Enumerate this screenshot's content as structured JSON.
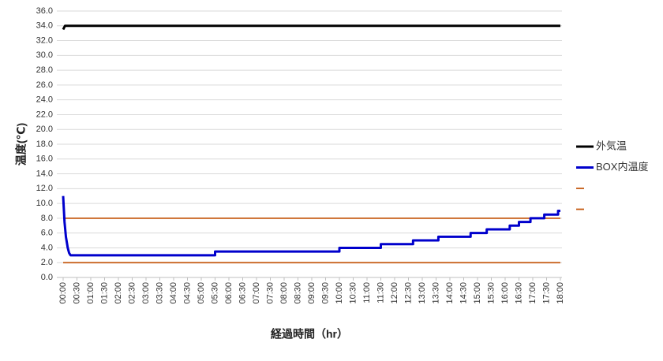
{
  "chart_data": {
    "type": "line",
    "x_label": "経過時間（hr）",
    "y_label": "温度(℃)",
    "ylim": [
      0,
      36
    ],
    "yticks": [
      {
        "value": 0,
        "label": "0.0"
      },
      {
        "value": 2,
        "label": "2.0"
      },
      {
        "value": 4,
        "label": "4.0"
      },
      {
        "value": 6,
        "label": "6.0"
      },
      {
        "value": 8,
        "label": "8.0"
      },
      {
        "value": 10,
        "label": "10.0"
      },
      {
        "value": 12,
        "label": "12.0"
      },
      {
        "value": 14,
        "label": "14.0"
      },
      {
        "value": 16,
        "label": "16.0"
      },
      {
        "value": 18,
        "label": "18.0"
      },
      {
        "value": 20,
        "label": "20.0"
      },
      {
        "value": 22,
        "label": "22.0"
      },
      {
        "value": 24,
        "label": "24.0"
      },
      {
        "value": 26,
        "label": "26.0"
      },
      {
        "value": 28,
        "label": "28.0"
      },
      {
        "value": 30,
        "label": "30.0"
      },
      {
        "value": 32,
        "label": "32.0"
      },
      {
        "value": 34,
        "label": "34.0"
      },
      {
        "value": 36,
        "label": "36.0"
      }
    ],
    "xlim": [
      0,
      1080
    ],
    "xticks": [
      {
        "value": 0,
        "label": "00:00"
      },
      {
        "value": 30,
        "label": "00:30"
      },
      {
        "value": 60,
        "label": "01:00"
      },
      {
        "value": 90,
        "label": "01:30"
      },
      {
        "value": 120,
        "label": "02:00"
      },
      {
        "value": 150,
        "label": "02:30"
      },
      {
        "value": 180,
        "label": "03:00"
      },
      {
        "value": 210,
        "label": "03:30"
      },
      {
        "value": 240,
        "label": "04:00"
      },
      {
        "value": 270,
        "label": "04:30"
      },
      {
        "value": 300,
        "label": "05:00"
      },
      {
        "value": 330,
        "label": "05:30"
      },
      {
        "value": 360,
        "label": "06:00"
      },
      {
        "value": 390,
        "label": "06:30"
      },
      {
        "value": 420,
        "label": "07:00"
      },
      {
        "value": 450,
        "label": "07:30"
      },
      {
        "value": 480,
        "label": "08:00"
      },
      {
        "value": 510,
        "label": "08:30"
      },
      {
        "value": 540,
        "label": "09:00"
      },
      {
        "value": 570,
        "label": "09:30"
      },
      {
        "value": 600,
        "label": "10:00"
      },
      {
        "value": 630,
        "label": "10:30"
      },
      {
        "value": 660,
        "label": "11:00"
      },
      {
        "value": 690,
        "label": "11:30"
      },
      {
        "value": 720,
        "label": "12:00"
      },
      {
        "value": 750,
        "label": "12:30"
      },
      {
        "value": 780,
        "label": "13:00"
      },
      {
        "value": 810,
        "label": "13:30"
      },
      {
        "value": 840,
        "label": "14:00"
      },
      {
        "value": 870,
        "label": "14:30"
      },
      {
        "value": 900,
        "label": "15:00"
      },
      {
        "value": 930,
        "label": "15:30"
      },
      {
        "value": 960,
        "label": "16:00"
      },
      {
        "value": 990,
        "label": "16:30"
      },
      {
        "value": 1020,
        "label": "17:00"
      },
      {
        "value": 1050,
        "label": "17:30"
      },
      {
        "value": 1080,
        "label": "18:00"
      }
    ],
    "grid": true,
    "legend": "right",
    "series": [
      {
        "name": "外気温",
        "color": "#000000",
        "x": [
          0,
          4,
          1080
        ],
        "values": [
          33.5,
          34,
          34
        ]
      },
      {
        "name": "BOX内温度",
        "color": "#0000cc",
        "x": [
          0,
          3,
          6,
          10,
          13,
          16,
          330,
          330,
          600,
          600,
          690,
          690,
          760,
          760,
          815,
          815,
          885,
          885,
          920,
          920,
          970,
          970,
          990,
          990,
          1015,
          1015,
          1045,
          1045,
          1075,
          1075,
          1080
        ],
        "values": [
          11,
          7.5,
          5.5,
          4,
          3.3,
          3,
          3,
          3.5,
          3.5,
          4,
          4,
          4.5,
          4.5,
          5,
          5,
          5.5,
          5.5,
          6,
          6,
          6.5,
          6.5,
          7,
          7,
          7.5,
          7.5,
          8,
          8,
          8.5,
          8.5,
          9,
          9
        ]
      },
      {
        "color": "#c55a11",
        "x": [
          0,
          1080
        ],
        "values": [
          8,
          8
        ]
      },
      {
        "color": "#c55a11",
        "x": [
          0,
          1080
        ],
        "values": [
          2,
          2
        ]
      }
    ]
  }
}
